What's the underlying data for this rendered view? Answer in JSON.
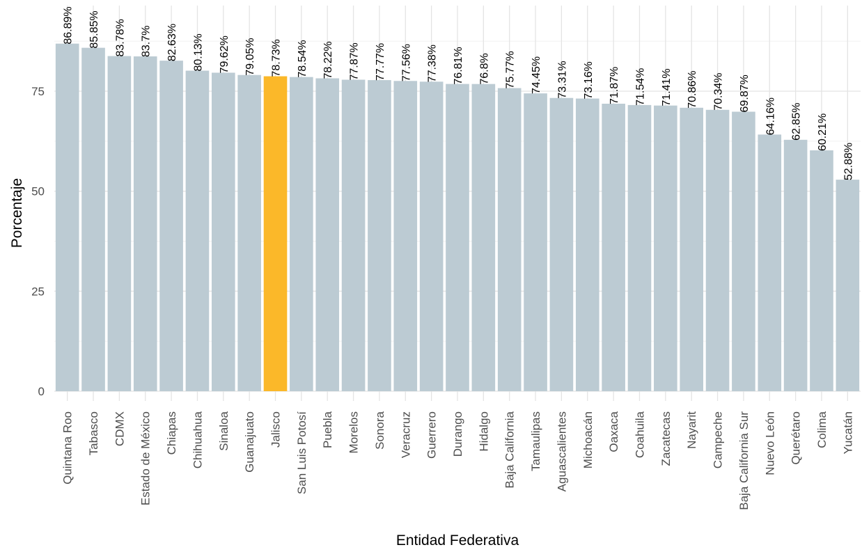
{
  "chart_data": {
    "type": "bar",
    "xlabel": "Entidad Federativa",
    "ylabel": "Porcentaje",
    "ylim": [
      0,
      90
    ],
    "yticks": [
      0,
      25,
      50,
      75
    ],
    "grid": true,
    "legend": "none",
    "colors": {
      "bar": "#bccbd3",
      "highlight": "#fbb829"
    },
    "highlight_category": "Jalisco",
    "categories": [
      "Quintana Roo",
      "Tabasco",
      "CDMX",
      "Estado de México",
      "Chiapas",
      "Chihuahua",
      "Sinaloa",
      "Guanajuato",
      "Jalisco",
      "San Luis Potosí",
      "Puebla",
      "Morelos",
      "Sonora",
      "Veracruz",
      "Guerrero",
      "Durango",
      "Hidalgo",
      "Baja California",
      "Tamaulipas",
      "Aguascalientes",
      "Michoacán",
      "Oaxaca",
      "Coahuila",
      "Zacatecas",
      "Nayarit",
      "Campeche",
      "Baja California Sur",
      "Nuevo León",
      "Querétaro",
      "Colima",
      "Yucatán"
    ],
    "values": [
      86.89,
      85.85,
      83.78,
      83.7,
      82.63,
      80.13,
      79.62,
      79.05,
      78.73,
      78.54,
      78.22,
      77.87,
      77.77,
      77.56,
      77.38,
      76.81,
      76.8,
      75.77,
      74.45,
      73.31,
      73.16,
      71.87,
      71.54,
      71.41,
      70.86,
      70.34,
      69.87,
      64.16,
      62.85,
      60.21,
      52.88
    ],
    "value_labels": [
      "86.89%",
      "85.85%",
      "83.78%",
      "83.7%",
      "82.63%",
      "80.13%",
      "79.62%",
      "79.05%",
      "78.73%",
      "78.54%",
      "78.22%",
      "77.87%",
      "77.77%",
      "77.56%",
      "77.38%",
      "76.81%",
      "76.8%",
      "75.77%",
      "74.45%",
      "73.31%",
      "73.16%",
      "71.87%",
      "71.54%",
      "71.41%",
      "70.86%",
      "70.34%",
      "69.87%",
      "64.16%",
      "62.85%",
      "60.21%",
      "52.88%"
    ]
  }
}
